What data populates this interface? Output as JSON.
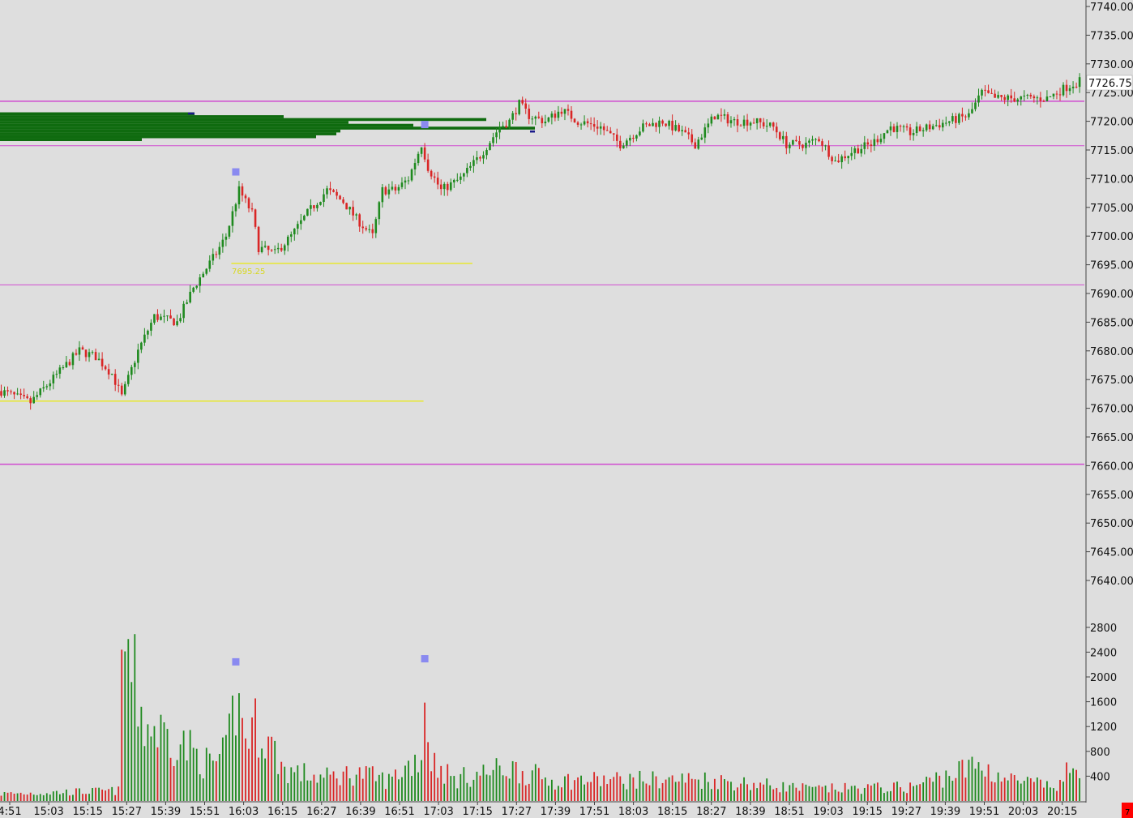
{
  "colors": {
    "background": "#dedede",
    "up": "#1f8a1f",
    "down": "#d92626",
    "magenta_line": "#d04bd0",
    "yellow_line": "#e8e830",
    "volume_profile": "#0f6b0f",
    "marker": "#8a8af0",
    "axis": "#444444"
  },
  "price_axis": {
    "labels": [
      "7740.00",
      "7735.00",
      "7730.00",
      "7725.00",
      "7720.00",
      "7715.00",
      "7710.00",
      "7705.00",
      "7700.00",
      "7695.00",
      "7690.00",
      "7685.00",
      "7680.00",
      "7675.00",
      "7670.00",
      "7665.00",
      "7660.00",
      "7655.00",
      "7650.00",
      "7645.00",
      "7640.00"
    ],
    "current_price": "7726.75",
    "range": [
      7638,
      7741
    ]
  },
  "volume_axis": {
    "labels": [
      "2800",
      "2400",
      "2000",
      "1600",
      "1200",
      "800",
      "400"
    ],
    "range": [
      0,
      3200
    ]
  },
  "time_axis": {
    "labels": [
      "4:51",
      "15:03",
      "15:15",
      "15:27",
      "15:39",
      "15:51",
      "16:03",
      "16:15",
      "16:27",
      "16:39",
      "16:51",
      "17:03",
      "17:15",
      "17:27",
      "17:39",
      "17:51",
      "18:03",
      "18:15",
      "18:27",
      "18:39",
      "18:51",
      "19:03",
      "19:15",
      "19:27",
      "19:39",
      "19:51",
      "20:03",
      "20:15"
    ]
  },
  "annotations": {
    "yellow_label": "7695.25",
    "corner_badge": "7"
  },
  "chart_data": {
    "type": "candlestick",
    "time_range": [
      "14:51",
      "20:22"
    ],
    "bar_interval_minutes": 1,
    "price_path": [
      [
        "14:51",
        7673
      ],
      [
        "15:00",
        7671
      ],
      [
        "15:10",
        7677
      ],
      [
        "15:15",
        7680
      ],
      [
        "15:20",
        7679
      ],
      [
        "15:25",
        7676
      ],
      [
        "15:28",
        7672
      ],
      [
        "15:33",
        7680
      ],
      [
        "15:38",
        7686
      ],
      [
        "15:45",
        7685
      ],
      [
        "15:50",
        7691
      ],
      [
        "15:57",
        7697
      ],
      [
        "16:00",
        7700
      ],
      [
        "16:04",
        7708
      ],
      [
        "16:08",
        7704
      ],
      [
        "16:10",
        7698
      ],
      [
        "16:15",
        7697
      ],
      [
        "16:20",
        7700
      ],
      [
        "16:25",
        7704
      ],
      [
        "16:31",
        7708
      ],
      [
        "16:36",
        7706
      ],
      [
        "16:40",
        7703
      ],
      [
        "16:45",
        7700
      ],
      [
        "16:48",
        7708
      ],
      [
        "16:52",
        7708
      ],
      [
        "16:56",
        7710
      ],
      [
        "17:00",
        7716
      ],
      [
        "17:02",
        7712
      ],
      [
        "17:06",
        7708
      ],
      [
        "17:12",
        7710
      ],
      [
        "17:18",
        7714
      ],
      [
        "17:24",
        7719
      ],
      [
        "17:27",
        7720
      ],
      [
        "17:30",
        7723
      ],
      [
        "17:33",
        7721
      ],
      [
        "17:38",
        7720
      ],
      [
        "17:43",
        7722
      ],
      [
        "17:48",
        7720
      ],
      [
        "17:55",
        7719
      ],
      [
        "18:01",
        7716
      ],
      [
        "18:08",
        7719
      ],
      [
        "18:14",
        7720
      ],
      [
        "18:20",
        7718
      ],
      [
        "18:24",
        7716
      ],
      [
        "18:30",
        7721
      ],
      [
        "18:36",
        7720
      ],
      [
        "18:42",
        7720
      ],
      [
        "18:48",
        7719
      ],
      [
        "18:52",
        7716
      ],
      [
        "18:58",
        7716
      ],
      [
        "19:02",
        7717
      ],
      [
        "19:07",
        7713
      ],
      [
        "19:13",
        7715
      ],
      [
        "19:18",
        7716
      ],
      [
        "19:24",
        7719
      ],
      [
        "19:30",
        7718
      ],
      [
        "19:36",
        7719
      ],
      [
        "19:42",
        7720
      ],
      [
        "19:48",
        7721
      ],
      [
        "19:52",
        7725
      ],
      [
        "19:56",
        7724
      ],
      [
        "20:00",
        7724
      ],
      [
        "20:06",
        7724
      ],
      [
        "20:12",
        7724
      ],
      [
        "20:18",
        7726
      ],
      [
        "20:22",
        7727
      ]
    ],
    "volume_path": [
      [
        "14:51",
        140
      ],
      [
        "15:27",
        200
      ],
      [
        "15:28",
        2450
      ],
      [
        "15:29",
        3200
      ],
      [
        "15:31",
        2500
      ],
      [
        "15:35",
        1500
      ],
      [
        "15:45",
        1200
      ],
      [
        "15:55",
        700
      ],
      [
        "16:00",
        900
      ],
      [
        "16:03",
        2000
      ],
      [
        "16:06",
        1300
      ],
      [
        "16:10",
        1500
      ],
      [
        "16:18",
        600
      ],
      [
        "16:30",
        450
      ],
      [
        "16:40",
        550
      ],
      [
        "16:50",
        400
      ],
      [
        "17:00",
        900
      ],
      [
        "17:01",
        2000
      ],
      [
        "17:03",
        800
      ],
      [
        "17:10",
        420
      ],
      [
        "17:27",
        650
      ],
      [
        "17:40",
        400
      ],
      [
        "18:27",
        420
      ],
      [
        "19:00",
        230
      ],
      [
        "19:30",
        270
      ],
      [
        "19:51",
        700
      ],
      [
        "20:00",
        420
      ],
      [
        "20:15",
        260
      ],
      [
        "20:21",
        780
      ]
    ],
    "horizontal_lines": [
      {
        "price": 7723.5,
        "color": "#d04bd0",
        "width": 1.5,
        "from_time": "14:51"
      },
      {
        "price": 7715.75,
        "color": "#d04bd0",
        "width": 1,
        "from_time": "14:51"
      },
      {
        "price": 7691.5,
        "color": "#d04bd0",
        "width": 1,
        "from_time": "14:51"
      },
      {
        "price": 7660.25,
        "color": "#d04bd0",
        "width": 1.5,
        "from_time": "14:51"
      },
      {
        "price": 7695.25,
        "color": "#e8e830",
        "width": 1.5,
        "from_time": "16:02",
        "to_time": "17:16"
      },
      {
        "price": 7671.25,
        "color": "#e8e830",
        "width": 1.5,
        "from_time": "14:51",
        "to_time": "17:01"
      }
    ],
    "price_markers": [
      {
        "time": "16:03",
        "price": 7711.25
      },
      {
        "time": "17:01",
        "price": 7719.5
      }
    ],
    "volume_markers": [
      {
        "time": "16:03",
        "volume": 2250
      },
      {
        "time": "17:01",
        "volume": 2300
      }
    ],
    "volume_profile": [
      {
        "price": 7721.25,
        "length": 240
      },
      {
        "price": 7720.75,
        "length": 350
      },
      {
        "price": 7720.25,
        "length": 600
      },
      {
        "price": 7719.75,
        "length": 430
      },
      {
        "price": 7719.25,
        "length": 510
      },
      {
        "price": 7718.75,
        "length": 660
      },
      {
        "price": 7718.25,
        "length": 420
      },
      {
        "price": 7717.75,
        "length": 415
      },
      {
        "price": 7717.25,
        "length": 390
      },
      {
        "price": 7716.75,
        "length": 175
      }
    ]
  }
}
